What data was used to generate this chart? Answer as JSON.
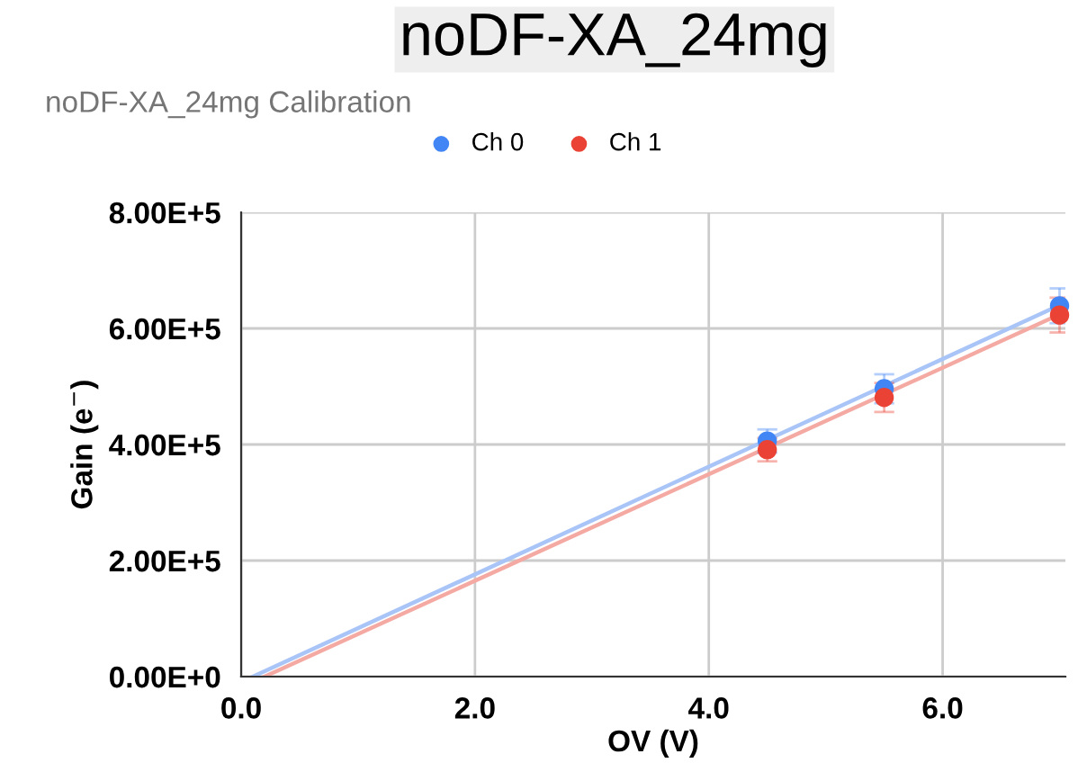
{
  "chart_data": {
    "type": "scatter",
    "title": "noDF-XA_24mg",
    "subtitle": "noDF-XA_24mg Calibration",
    "xlabel": "OV (V)",
    "ylabel": "Gain (e$^{−}$)",
    "xlim": [
      0,
      7.05
    ],
    "xticks": [
      {
        "value": 0,
        "label": "0.0"
      },
      {
        "value": 2,
        "label": "2.0"
      },
      {
        "value": 4,
        "label": "4.0"
      },
      {
        "value": 6,
        "label": "6.0"
      }
    ],
    "ylim": [
      0,
      800000
    ],
    "yticks": [
      {
        "value": 0,
        "label": "0.00E+0"
      },
      {
        "value": 200000,
        "label": "2.00E+5"
      },
      {
        "value": 400000,
        "label": "4.00E+5"
      },
      {
        "value": 600000,
        "label": "6.00E+5"
      },
      {
        "value": 800000,
        "label": "8.00E+5"
      }
    ],
    "grid": true,
    "legend": "top",
    "marker": "circle",
    "series": [
      {
        "name": "Ch 0",
        "color": "#4285f4",
        "x": [
          4.5,
          5.5,
          7.0
        ],
        "values": [
          406000,
          496000,
          639000
        ],
        "errors": [
          20000,
          25000,
          30000
        ]
      },
      {
        "name": "Ch 1",
        "color": "#ea4335",
        "x": [
          4.5,
          5.5,
          7.0
        ],
        "values": [
          391000,
          481000,
          623000
        ],
        "errors": [
          20000,
          25000,
          30000
        ]
      },
      {
        "type": "line",
        "marker": "none",
        "color": "#a9c4f7",
        "x": [
          0.1,
          7.0
        ],
        "values": [
          0,
          640000
        ]
      },
      {
        "type": "line",
        "marker": "none",
        "color": "#f4aaa3",
        "x": [
          0.2,
          7.0
        ],
        "values": [
          0,
          624000
        ]
      }
    ]
  }
}
